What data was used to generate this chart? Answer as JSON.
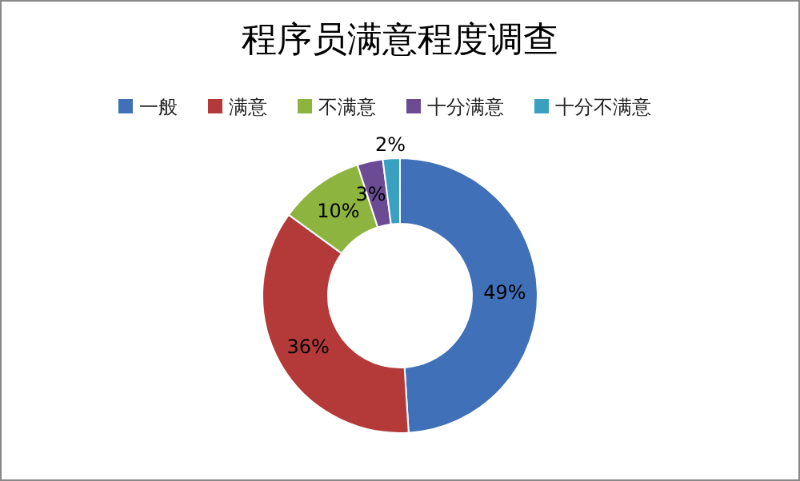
{
  "chart_data": {
    "type": "donut",
    "title": "程序员满意程度调查",
    "categories": [
      "一般",
      "满意",
      "不满意",
      "十分满意",
      "十分不满意"
    ],
    "values": [
      49,
      36,
      10,
      3,
      2
    ],
    "colors": [
      "#4070b8",
      "#b43a3a",
      "#8db43f",
      "#6a4b94",
      "#3aa0c2"
    ],
    "value_labels": [
      "49%",
      "36%",
      "10%",
      "3%",
      "2%"
    ],
    "legend": "top"
  }
}
